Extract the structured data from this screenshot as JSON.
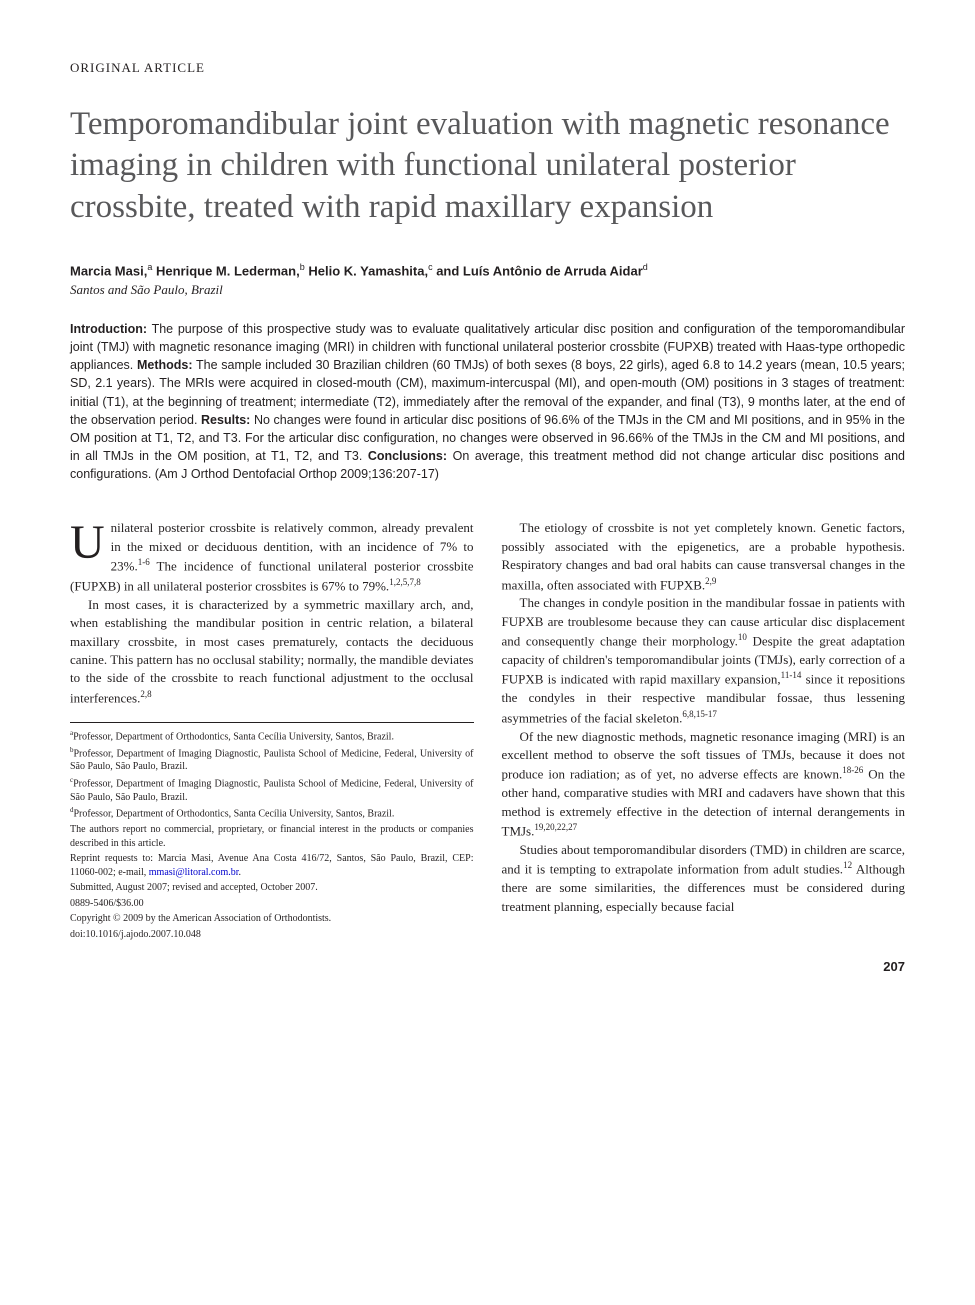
{
  "articleType": "ORIGINAL ARTICLE",
  "title": "Temporomandibular joint evaluation with magnetic resonance imaging in children with functional unilateral posterior crossbite, treated with rapid maxillary expansion",
  "authors": [
    {
      "name": "Marcia Masi,",
      "sup": "a"
    },
    {
      "name": " Henrique M. Lederman,",
      "sup": "b"
    },
    {
      "name": " Helio K. Yamashita,",
      "sup": "c"
    },
    {
      "name": " and Luís Antônio de Arruda Aidar",
      "sup": "d"
    }
  ],
  "affilLoc": "Santos and São Paulo, Brazil",
  "abstract": {
    "introLabel": "Introduction:",
    "intro": " The purpose of this prospective study was to evaluate qualitatively articular disc position and configuration of the temporomandibular joint (TMJ) with magnetic resonance imaging (MRI) in children with functional unilateral posterior crossbite (FUPXB) treated with Haas-type orthopedic appliances. ",
    "methodsLabel": "Methods:",
    "methods": " The sample included 30 Brazilian children (60 TMJs) of both sexes (8 boys, 22 girls), aged 6.8 to 14.2 years (mean, 10.5 years; SD, 2.1 years). The MRIs were acquired in closed-mouth (CM), maximum-intercuspal (MI), and open-mouth (OM) positions in 3 stages of treatment: initial (T1), at the beginning of treatment; intermediate (T2), immediately after the removal of the expander, and final (T3), 9 months later, at the end of the observation period. ",
    "resultsLabel": "Results:",
    "results": " No changes were found in articular disc positions of 96.6% of the TMJs in the CM and MI positions, and in 95% in the OM position at T1, T2, and T3. For the articular disc configuration, no changes were observed in 96.66% of the TMJs in the CM and MI positions, and in all TMJs in the OM position, at T1, T2, and T3. ",
    "conclLabel": "Conclusions:",
    "concl": " On average, this treatment method did not change articular disc positions and configurations. (Am J Orthod Dentofacial Orthop 2009;136:207-17)"
  },
  "body": {
    "p1a": "nilateral posterior crossbite is relatively common, already prevalent in the mixed or deciduous dentition, with an incidence of 7% to 23%.",
    "p1sup1": "1-6",
    "p1b": " The incidence of functional unilateral posterior crossbite (FUPXB) in all unilateral posterior crossbites is 67% to 79%.",
    "p1sup2": "1,2,5,7,8",
    "p2a": "In most cases, it is characterized by a symmetric maxillary arch, and, when establishing the mandibular position in centric relation, a bilateral maxillary crossbite, in most cases prematurely, contacts the deciduous canine. This pattern has no occlusal stability; normally, the mandible deviates to the side of the crossbite to reach functional adjustment to the occlusal interferences.",
    "p2sup": "2,8",
    "p3a": "The etiology of crossbite is not yet completely known. Genetic factors, possibly associated with the epigenetics, are a probable hypothesis. Respiratory changes and bad oral habits can cause transversal changes in the maxilla, often associated with FUPXB.",
    "p3sup": "2,9",
    "p4a": "The changes in condyle position in the mandibular fossae in patients with FUPXB are troublesome because they can cause articular disc displacement and consequently change their morphology.",
    "p4sup1": "10",
    "p4b": " Despite the great adaptation capacity of children's temporomandibular joints (TMJs), early correction of a FUPXB is indicated with rapid maxillary expansion,",
    "p4sup2": "11-14",
    "p4c": " since it repositions the condyles in their respective mandibular fossae, thus lessening asymmetries of the facial skeleton.",
    "p4sup3": "6,8,15-17",
    "p5a": "Of the new diagnostic methods, magnetic resonance imaging (MRI) is an excellent method to observe the soft tissues of TMJs, because it does not produce ion radiation; as of yet, no adverse effects are known.",
    "p5sup1": "18-26",
    "p5b": " On the other hand, comparative studies with MRI and cadavers have shown that this method is extremely effective in the detection of internal derangements in TMJs.",
    "p5sup2": "19,20,22,27",
    "p6a": "Studies about temporomandibular disorders (TMD) in children are scarce, and it is tempting to extrapolate information from adult studies.",
    "p6sup": "12",
    "p6b": " Although there are some similarities, the differences must be considered during treatment planning, especially because facial"
  },
  "footnotes": {
    "a": "Professor, Department of Orthodontics, Santa Cecília University, Santos, Brazil.",
    "b": "Professor, Department of Imaging Diagnostic, Paulista School of Medicine, Federal, University of São Paulo, São Paulo, Brazil.",
    "c": "Professor, Department of Imaging Diagnostic, Paulista School of Medicine, Federal, University of São Paulo, São Paulo, Brazil.",
    "d": "Professor, Department of Orthodontics, Santa Cecília University, Santos, Brazil.",
    "disclosure": "The authors report no commercial, proprietary, or financial interest in the products or companies described in this article.",
    "reprintA": "Reprint requests to: Marcia Masi, Avenue Ana Costa 416/72, Santos, São Paulo, Brazil, CEP: 11060-002; e-mail, ",
    "reprintMail": "mmasi@litoral.com.br",
    "reprintB": ".",
    "submitted": "Submitted, August 2007; revised and accepted, October 2007.",
    "issn": "0889-5406/$36.00",
    "copyright": "Copyright © 2009 by the American Association of Orthodontists.",
    "doi": "doi:10.1016/j.ajodo.2007.10.048"
  },
  "pageNum": "207"
}
